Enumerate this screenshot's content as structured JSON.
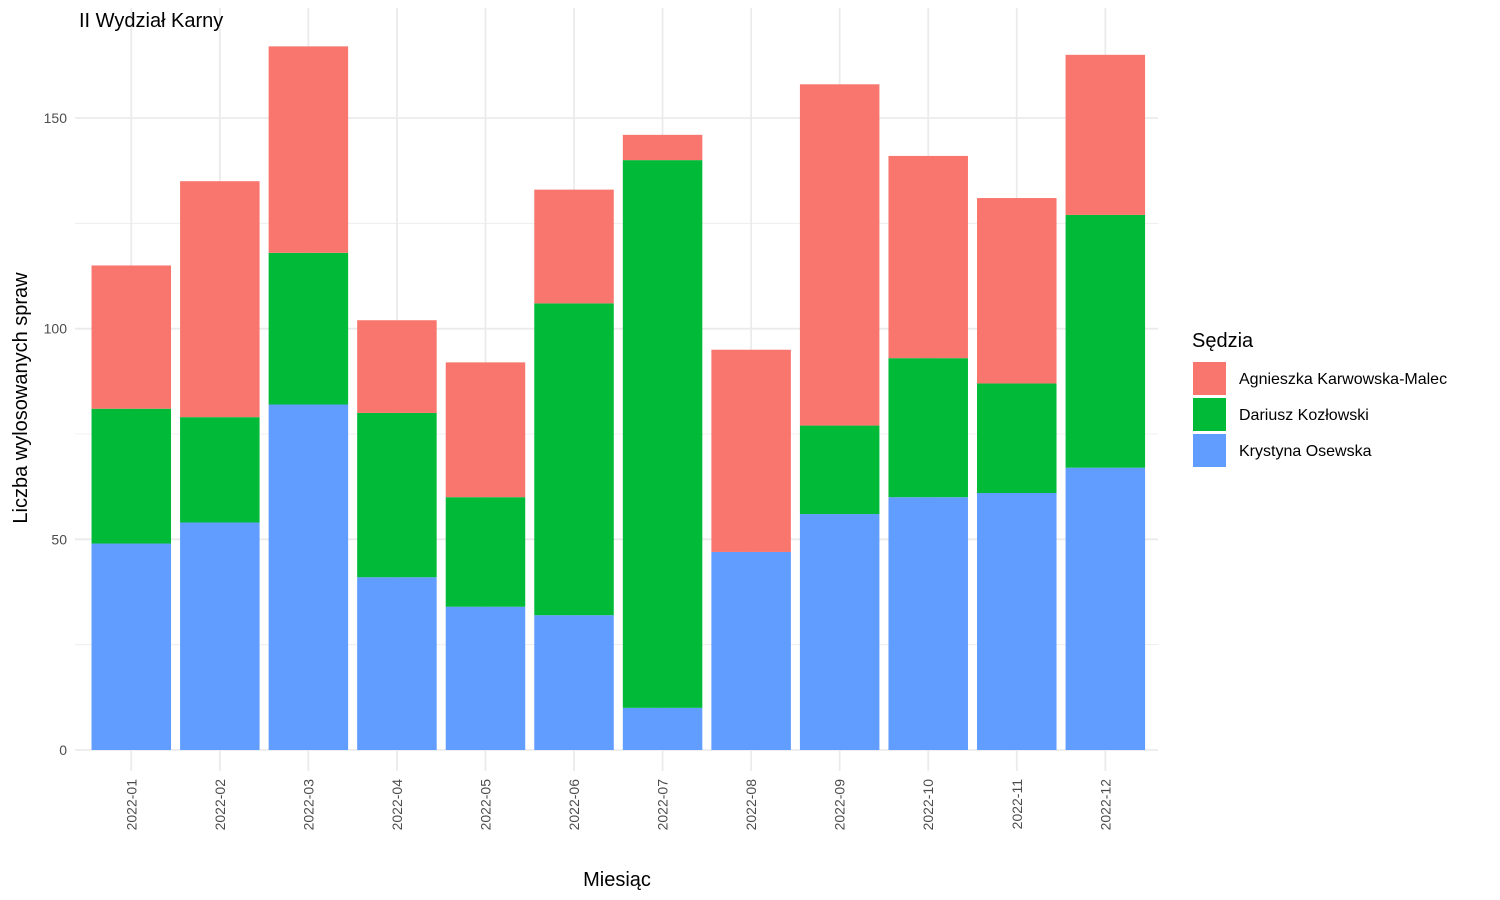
{
  "chart_data": {
    "type": "bar",
    "stacked": true,
    "title": "II Wydział Karny",
    "xlabel": "Miesiąc",
    "ylabel": "Liczba wylosowanych spraw",
    "ylim": [
      0,
      170
    ],
    "yticks": [
      0,
      50,
      100,
      150
    ],
    "grid": true,
    "legend_position": "right",
    "legend_title": "Sędzia",
    "categories": [
      "2022-01",
      "2022-02",
      "2022-03",
      "2022-04",
      "2022-05",
      "2022-06",
      "2022-07",
      "2022-08",
      "2022-09",
      "2022-10",
      "2022-11",
      "2022-12"
    ],
    "series": [
      {
        "name": "Krystyna Osewska",
        "color": "#619CFF",
        "values": [
          49,
          54,
          82,
          41,
          34,
          32,
          10,
          47,
          56,
          60,
          61,
          67
        ]
      },
      {
        "name": "Dariusz Kozłowski",
        "color": "#00BA38",
        "values": [
          32,
          25,
          36,
          39,
          26,
          74,
          130,
          0,
          21,
          33,
          26,
          60
        ]
      },
      {
        "name": "Agnieszka Karwowska-Malec",
        "color": "#F8766D",
        "values": [
          34,
          56,
          49,
          22,
          32,
          27,
          6,
          48,
          81,
          48,
          44,
          38
        ]
      }
    ],
    "legend_order": [
      "Agnieszka Karwowska-Malec",
      "Dariusz Kozłowski",
      "Krystyna Osewska"
    ]
  }
}
